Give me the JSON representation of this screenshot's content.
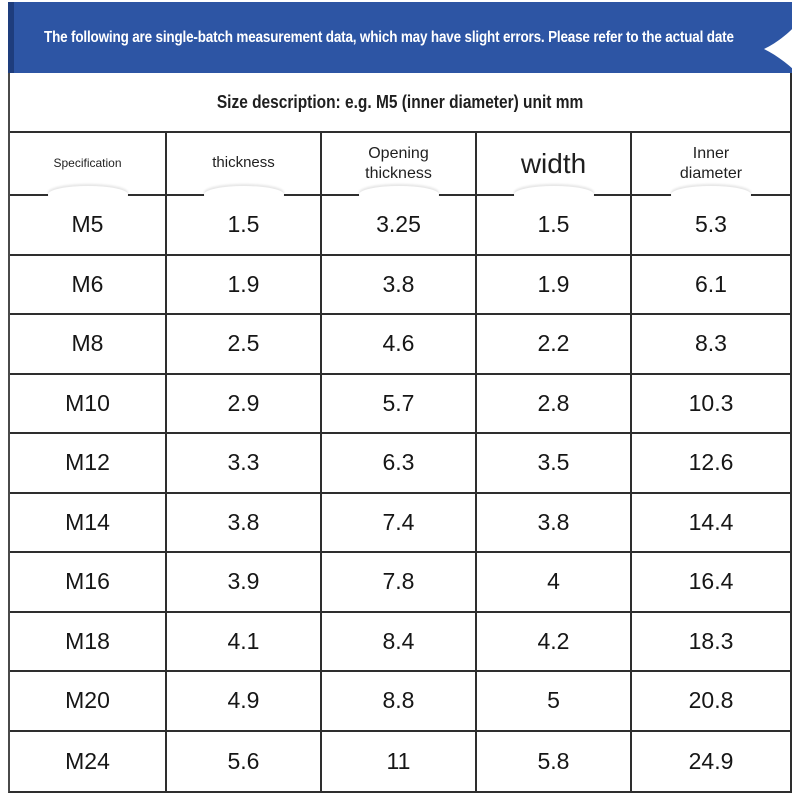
{
  "banner": {
    "text": "The following are single-batch measurement data, which may have slight errors. Please refer to the actual date",
    "bg_color": "#2d55a4",
    "edge_color": "#1e3d7d",
    "text_color": "#ffffff"
  },
  "subtitle": {
    "text": "Size description: e.g. M5 (inner diameter) unit mm"
  },
  "table": {
    "headers": [
      "Specification",
      "thickness",
      "Opening\nthickness",
      "width",
      "Inner\ndiameter"
    ],
    "rows": [
      [
        "M5",
        "1.5",
        "3.25",
        "1.5",
        "5.3"
      ],
      [
        "M6",
        "1.9",
        "3.8",
        "1.9",
        "6.1"
      ],
      [
        "M8",
        "2.5",
        "4.6",
        "2.2",
        "8.3"
      ],
      [
        "M10",
        "2.9",
        "5.7",
        "2.8",
        "10.3"
      ],
      [
        "M12",
        "3.3",
        "6.3",
        "3.5",
        "12.6"
      ],
      [
        "M14",
        "3.8",
        "7.4",
        "3.8",
        "14.4"
      ],
      [
        "M16",
        "3.9",
        "7.8",
        "4",
        "16.4"
      ],
      [
        "M18",
        "4.1",
        "8.4",
        "4.2",
        "18.3"
      ],
      [
        "M20",
        "4.9",
        "8.8",
        "5",
        "20.8"
      ],
      [
        "M24",
        "5.6",
        "11",
        "5.8",
        "24.9"
      ]
    ]
  }
}
